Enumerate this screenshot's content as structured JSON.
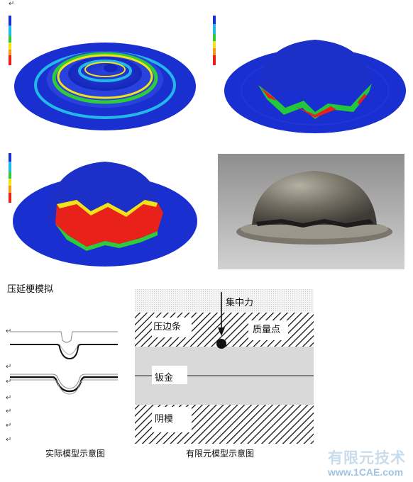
{
  "colors": {
    "fem_blue": "#1a2fd0",
    "fem_cyan": "#22b8e8",
    "fem_green": "#2ecc3a",
    "fem_yellow": "#f2e21a",
    "fem_red": "#e8221a",
    "hatch": "#111111",
    "sheet_gray": "#d9d9d9"
  },
  "icons": {
    "paragraph_mark": "↵",
    "force_arrow": "down-arrow-icon",
    "mass_point": "filled-circle-icon"
  },
  "paragraph_mark": "↵",
  "section_title": "压延梗模拟",
  "fem_model": {
    "force_label": "集中力",
    "blank_holder_label": "压边条",
    "mass_point_label": "质量点",
    "sheet_label": "钣金",
    "die_label": "阴模"
  },
  "captions": {
    "actual_model": "实际模型示意图",
    "fem_model": "有限元模型示意图"
  },
  "watermark": {
    "line1": "有限元技术",
    "line2": "www.1CAE.com"
  }
}
